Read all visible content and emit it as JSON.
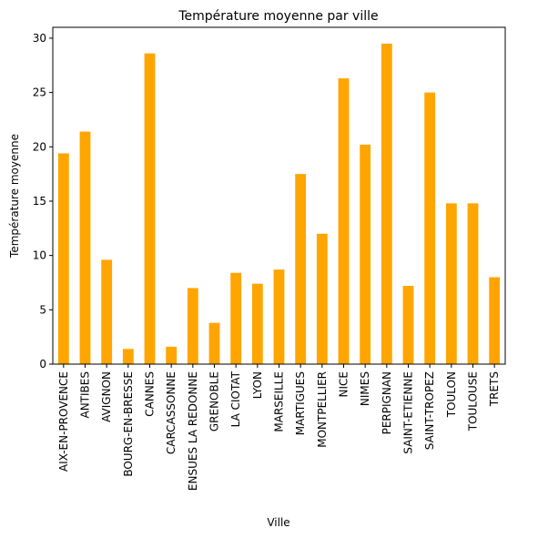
{
  "chart_data": {
    "type": "bar",
    "title": "Température moyenne par ville",
    "xlabel": "Ville",
    "ylabel": "Température moyenne",
    "ylim": [
      0,
      31
    ],
    "yticks": [
      0,
      5,
      10,
      15,
      20,
      25,
      30
    ],
    "grid": false,
    "legend": "none",
    "bar_color": "#ffa500",
    "categories": [
      "AIX-EN-PROVENCE",
      "ANTIBES",
      "AVIGNON",
      "BOURG-EN-BRESSE",
      "CANNES",
      "CARCASSONNE",
      "ENSUES LA REDONNE",
      "GRENOBLE",
      "LA CIOTAT",
      "LYON",
      "MARSEILLE",
      "MARTIGUES",
      "MONTPELLIER",
      "NICE",
      "NIMES",
      "PERPIGNAN",
      "SAINT-ETIENNE",
      "SAINT-TROPEZ",
      "TOULON",
      "TOULOUSE",
      "TRETS"
    ],
    "values": [
      19.4,
      21.4,
      9.6,
      1.4,
      28.6,
      1.6,
      7.0,
      3.8,
      8.4,
      7.4,
      8.7,
      17.5,
      12.0,
      26.3,
      20.2,
      29.5,
      7.2,
      25.0,
      14.8,
      14.8,
      8.0
    ]
  }
}
